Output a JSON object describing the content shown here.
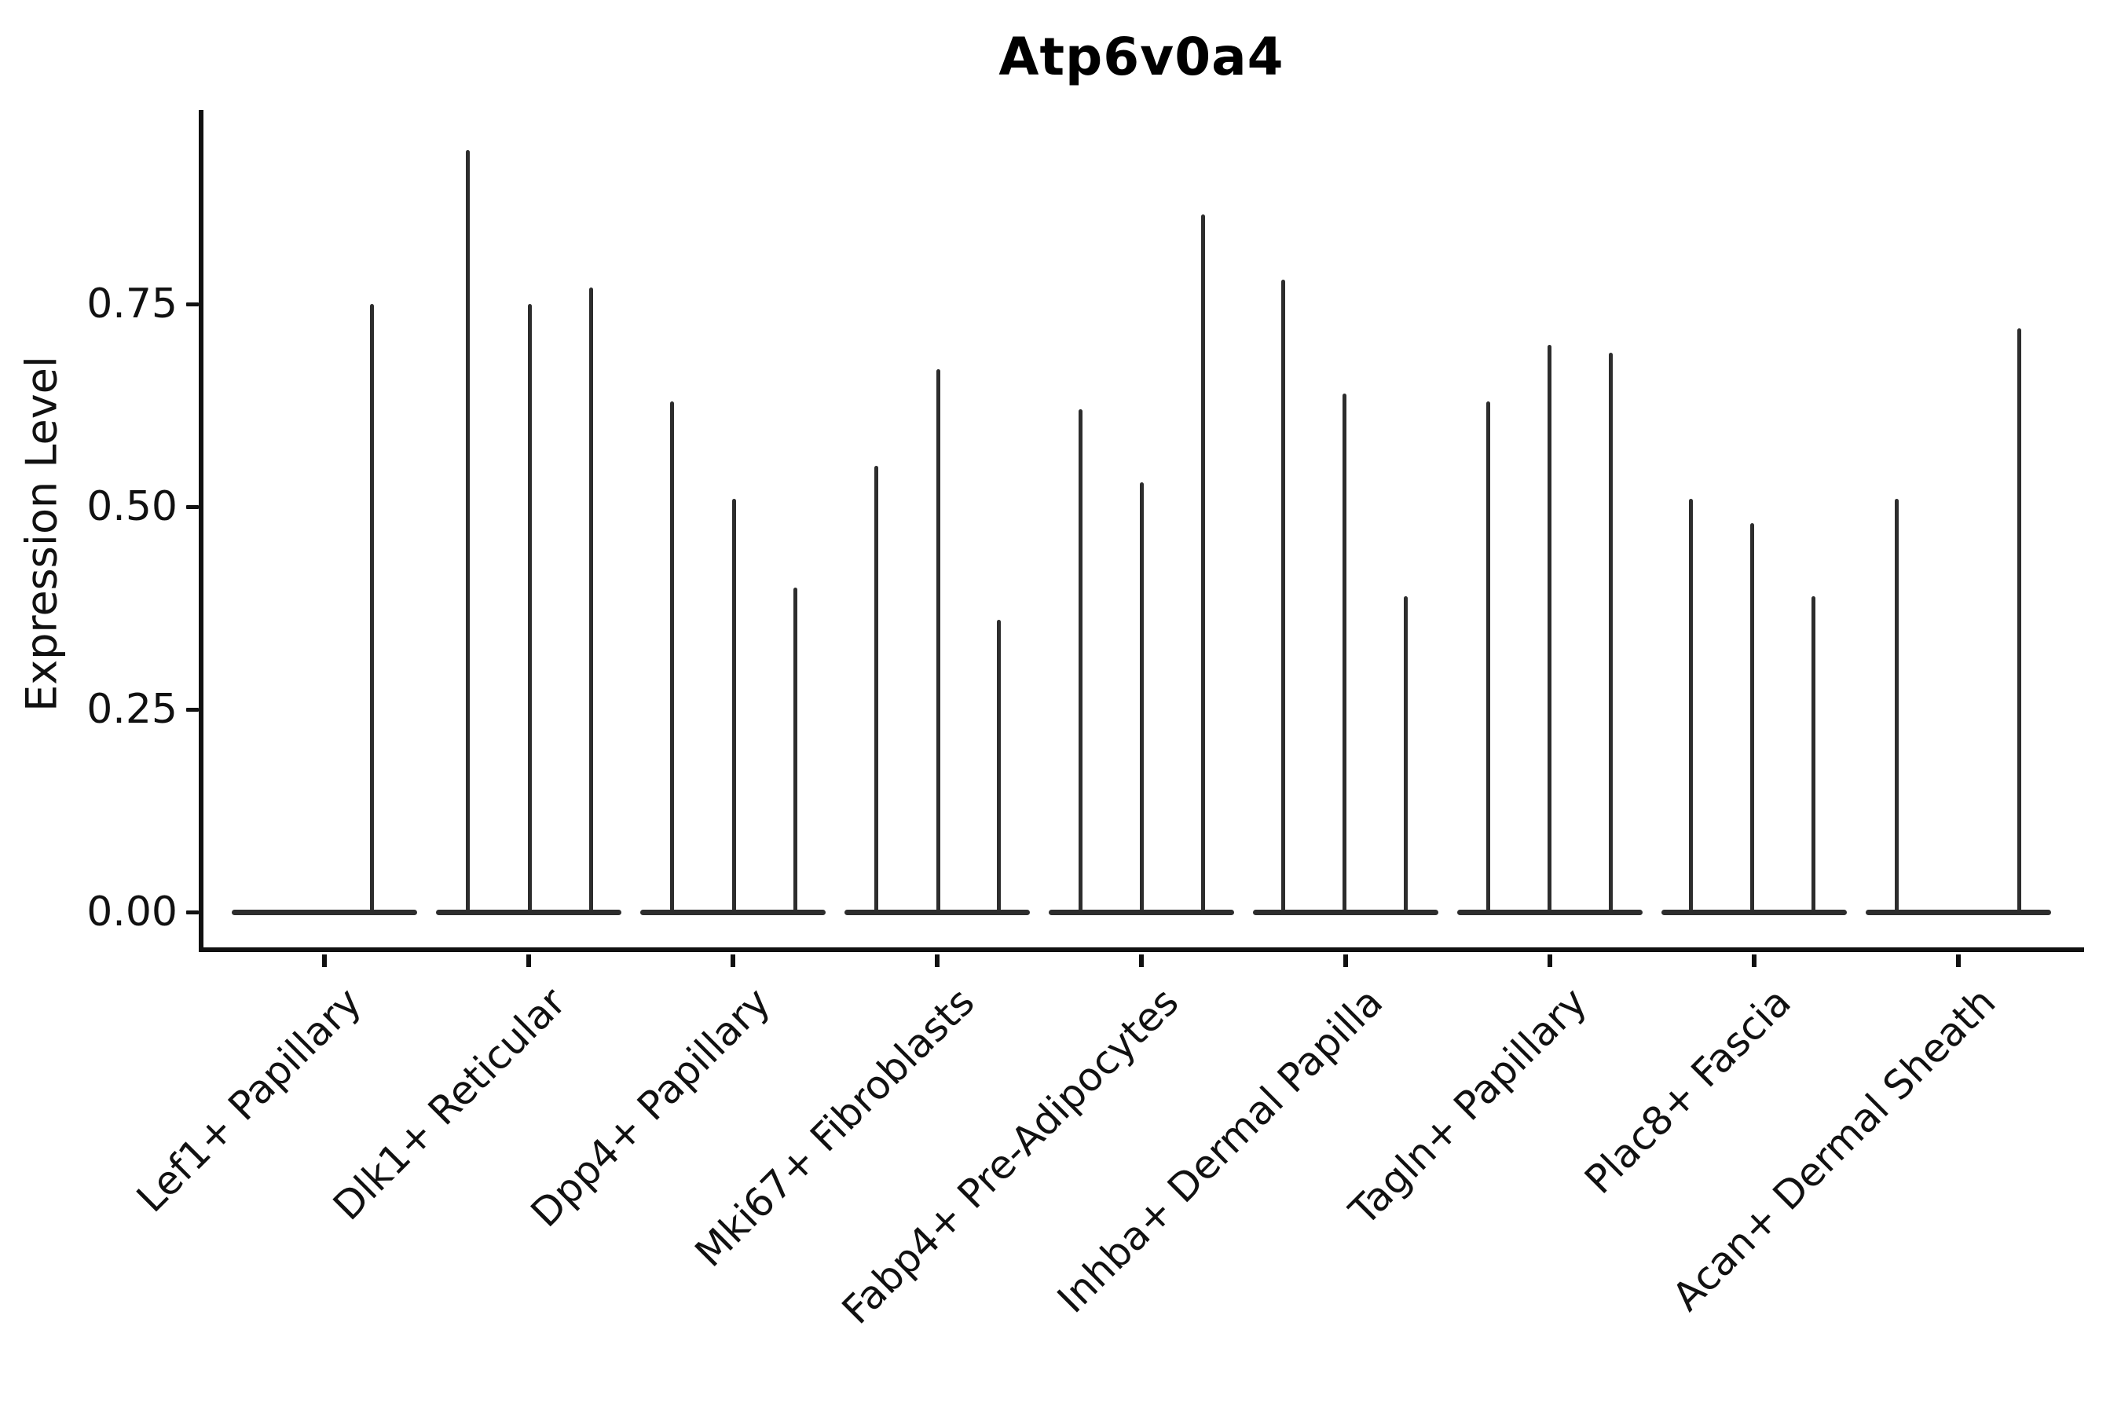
{
  "title": "Atp6v0a4",
  "axes": {
    "ylabel": "Expression Level",
    "ytick_labels": [
      "0.00",
      "0.25",
      "0.50",
      "0.75"
    ]
  },
  "colors": {
    "background": "#ffffff",
    "ink": "#111111",
    "violin": "#2d2d2d"
  },
  "chart_data": {
    "type": "violin",
    "title": "Atp6v0a4",
    "xlabel": "",
    "ylabel": "Expression Level",
    "yticks": [
      0.0,
      0.25,
      0.5,
      0.75
    ],
    "ytick_labels": [
      "0.00",
      "0.25",
      "0.50",
      "0.75"
    ],
    "ylim": [
      -0.05,
      0.99
    ],
    "grid": false,
    "legend": false,
    "x_tick_rotation": 45,
    "description": "Grouped violin plot; each category shows a flat violin base at expression 0 with thin density spikes rising to the maximum expression of each sub-violin.",
    "categories": [
      "Lef1+ Papillary",
      "Dlk1+ Reticular",
      "Dpp4+ Papillary",
      "Mki67+ Fibroblasts",
      "Fabp4+ Pre-Adipocytes",
      "Inhba+ Dermal Papilla",
      "Tagln+ Papillary",
      "Plac8+ Fascia",
      "Acan+ Dermal Sheath"
    ],
    "groups": [
      {
        "category": "Lef1+ Papillary",
        "spikes": [
          {
            "dx": 60,
            "value": 0.75
          }
        ]
      },
      {
        "category": "Dlk1+ Reticular",
        "spikes": [
          {
            "dx": -78,
            "value": 0.94
          },
          {
            "dx": 1,
            "value": 0.75
          },
          {
            "dx": 79,
            "value": 0.77
          }
        ]
      },
      {
        "category": "Dpp4+ Papillary",
        "spikes": [
          {
            "dx": -78,
            "value": 0.63
          },
          {
            "dx": 1,
            "value": 0.51
          },
          {
            "dx": 79,
            "value": 0.4
          }
        ]
      },
      {
        "category": "Mki67+ Fibroblasts",
        "spikes": [
          {
            "dx": -78,
            "value": 0.55
          },
          {
            "dx": 1,
            "value": 0.67
          },
          {
            "dx": 78,
            "value": 0.36
          }
        ]
      },
      {
        "category": "Fabp4+ Pre-Adipocytes",
        "spikes": [
          {
            "dx": -78,
            "value": 0.62
          },
          {
            "dx": 0,
            "value": 0.53
          },
          {
            "dx": 78,
            "value": 0.86
          }
        ]
      },
      {
        "category": "Inhba+ Dermal Papilla",
        "spikes": [
          {
            "dx": -80,
            "value": 0.78
          },
          {
            "dx": -2,
            "value": 0.64
          },
          {
            "dx": 76,
            "value": 0.39
          }
        ]
      },
      {
        "category": "Tagln+ Papillary",
        "spikes": [
          {
            "dx": -79,
            "value": 0.63
          },
          {
            "dx": -1,
            "value": 0.7
          },
          {
            "dx": 77,
            "value": 0.69
          }
        ]
      },
      {
        "category": "Plac8+ Fascia",
        "spikes": [
          {
            "dx": -81,
            "value": 0.51
          },
          {
            "dx": -3,
            "value": 0.48
          },
          {
            "dx": 75,
            "value": 0.39
          }
        ]
      },
      {
        "category": "Acan+ Dermal Sheath",
        "spikes": [
          {
            "dx": -79,
            "value": 0.51
          },
          {
            "dx": 77,
            "value": 0.72
          }
        ]
      }
    ]
  }
}
